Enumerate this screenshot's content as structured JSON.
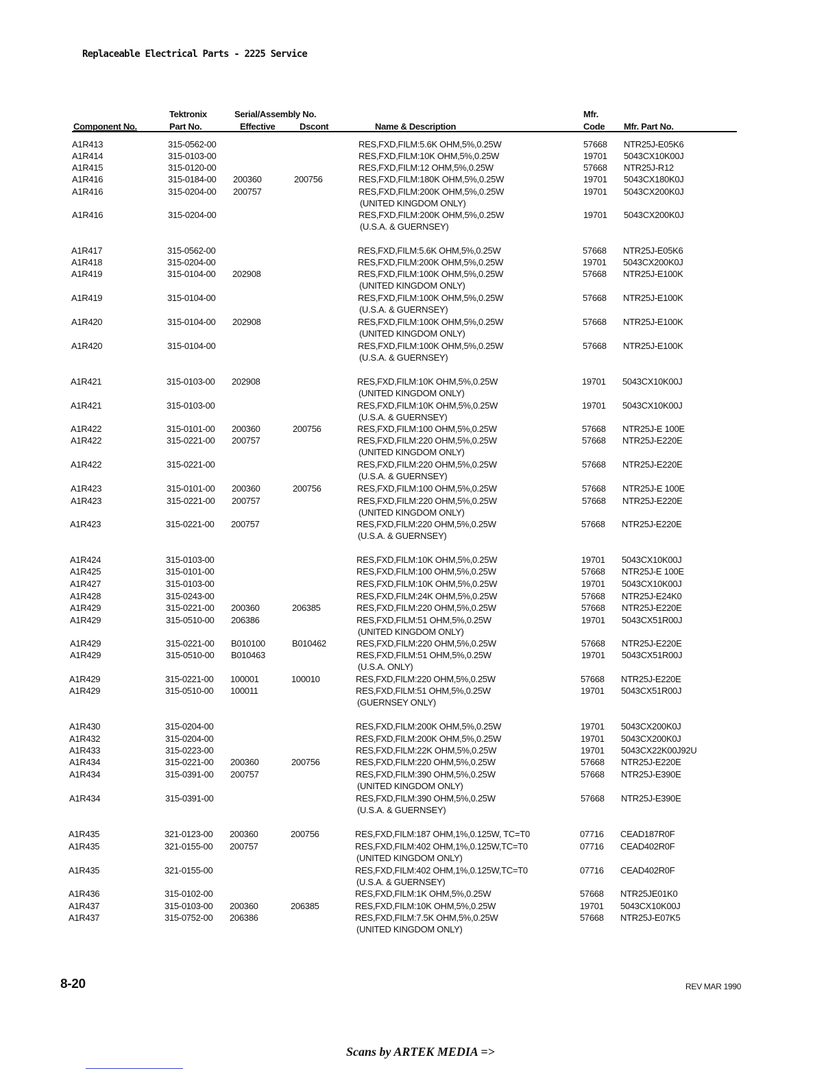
{
  "header": {
    "title": "Replaceable Electrical Parts - 2225 Service"
  },
  "columns": {
    "component": "Component No.",
    "tek_top": "Tektronix",
    "tek_part": "Part No.",
    "serial_top": "Serial/Assembly No.",
    "effective": "Effective",
    "dscont": "Dscont",
    "description": "Name & Description",
    "mfr_top": "Mfr.",
    "mfr_code": "Code",
    "mfr_part": "Mfr. Part No."
  },
  "rows": [
    [
      "A1R413",
      "315-0562-00",
      "",
      "",
      "RES,FXD,FILM:5.6K OHM,5%,0.25W",
      "",
      "57668",
      "NTR25J-E05K6"
    ],
    [
      "A1R414",
      "315-0103-00",
      "",
      "",
      "RES,FXD,FILM:10K OHM,5%,0.25W",
      "",
      "19701",
      "5043CX10K00J"
    ],
    [
      "A1R415",
      "315-0120-00",
      "",
      "",
      "RES,FXD,FILM:12 OHM,5%,0.25W",
      "",
      "57668",
      "NTR25J-R12"
    ],
    [
      "A1R416",
      "315-0184-00",
      "200360",
      "200756",
      "RES,FXD,FILM:180K OHM,5%,0.25W",
      "",
      "19701",
      "5043CX180K0J"
    ],
    [
      "A1R416",
      "315-0204-00",
      "200757",
      "",
      "RES,FXD,FILM:200K OHM,5%,0.25W",
      "(UNITED KINGDOM ONLY)",
      "19701",
      "5043CX200K0J"
    ],
    [
      "A1R416",
      "315-0204-00",
      "",
      "",
      "RES,FXD,FILM:200K OHM,5%,0.25W",
      "(U.S.A. & GUERNSEY)",
      "19701",
      "5043CX200K0J"
    ],
    [
      "A1R417",
      "315-0562-00",
      "",
      "",
      "RES,FXD,FILM:5.6K OHM,5%,0.25W",
      "",
      "57668",
      "NTR25J-E05K6"
    ],
    [
      "A1R418",
      "315-0204-00",
      "",
      "",
      "RES,FXD,FILM:200K OHM,5%,0.25W",
      "",
      "19701",
      "5043CX200K0J"
    ],
    [
      "A1R419",
      "315-0104-00",
      "202908",
      "",
      "RES,FXD,FILM:100K OHM,5%,0.25W",
      "(UNITED KINGDOM ONLY)",
      "57668",
      "NTR25J-E100K"
    ],
    [
      "A1R419",
      "315-0104-00",
      "",
      "",
      "RES,FXD,FILM:100K OHM,5%,0.25W",
      "(U.S.A. & GUERNSEY)",
      "57668",
      "NTR25J-E100K"
    ],
    [
      "A1R420",
      "315-0104-00",
      "202908",
      "",
      "RES,FXD,FILM:100K OHM,5%,0.25W",
      "(UNITED KINGDOM ONLY)",
      "57668",
      "NTR25J-E100K"
    ],
    [
      "A1R420",
      "315-0104-00",
      "",
      "",
      "RES,FXD,FILM:100K OHM,5%,0.25W",
      "(U.S.A. & GUERNSEY)",
      "57668",
      "NTR25J-E100K"
    ],
    [
      "A1R421",
      "315-0103-00",
      "202908",
      "",
      "RES,FXD,FILM:10K OHM,5%,0.25W",
      "(UNITED KINGDOM ONLY)",
      "19701",
      "5043CX10K00J"
    ],
    [
      "A1R421",
      "315-0103-00",
      "",
      "",
      "RES,FXD,FILM:10K OHM,5%,0.25W",
      "(U.S.A. & GUERNSEY)",
      "19701",
      "5043CX10K00J"
    ],
    [
      "A1R422",
      "315-0101-00",
      "200360",
      "200756",
      "RES,FXD,FILM:100 OHM,5%,0.25W",
      "",
      "57668",
      "NTR25J-E 100E"
    ],
    [
      "A1R422",
      "315-0221-00",
      "200757",
      "",
      "RES,FXD,FILM:220 OHM,5%,0.25W",
      "(UNITED KINGDOM ONLY)",
      "57668",
      "NTR25J-E220E"
    ],
    [
      "A1R422",
      "315-0221-00",
      "",
      "",
      "RES,FXD,FILM:220 OHM,5%,0.25W",
      "(U.S.A. & GUERNSEY)",
      "57668",
      "NTR25J-E220E"
    ],
    [
      "A1R423",
      "315-0101-00",
      "200360",
      "200756",
      "RES,FXD,FILM:100 OHM,5%,0.25W",
      "",
      "57668",
      "NTR25J-E 100E"
    ],
    [
      "A1R423",
      "315-0221-00",
      "200757",
      "",
      "RES,FXD,FILM:220 OHM,5%,0.25W",
      "(UNITED KINGDOM ONLY)",
      "57668",
      "NTR25J-E220E"
    ],
    [
      "A1R423",
      "315-0221-00",
      "200757",
      "",
      "RES,FXD,FILM:220 OHM,5%,0.25W",
      "(U.S.A. & GUERNSEY)",
      "57668",
      "NTR25J-E220E"
    ],
    [
      "A1R424",
      "315-0103-00",
      "",
      "",
      "RES,FXD,FILM:10K OHM,5%,0.25W",
      "",
      "19701",
      "5043CX10K00J"
    ],
    [
      "A1R425",
      "315-0101-00",
      "",
      "",
      "RES,FXD,FILM:100 OHM,5%,0.25W",
      "",
      "57668",
      "NTR25J-E 100E"
    ],
    [
      "A1R427",
      "315-0103-00",
      "",
      "",
      "RES,FXD,FILM:10K OHM,5%,0.25W",
      "",
      "19701",
      "5043CX10K00J"
    ],
    [
      "A1R428",
      "315-0243-00",
      "",
      "",
      "RES,FXD,FILM:24K OHM,5%,0.25W",
      "",
      "57668",
      "NTR25J-E24K0"
    ],
    [
      "A1R429",
      "315-0221-00",
      "200360",
      "206385",
      "RES,FXD,FILM:220 OHM,5%,0.25W",
      "",
      "57668",
      "NTR25J-E220E"
    ],
    [
      "A1R429",
      "315-0510-00",
      "206386",
      "",
      "RES,FXD,FILM:51 OHM,5%,0.25W",
      "(UNITED KINGDOM ONLY)",
      "19701",
      "5043CX51R00J"
    ],
    [
      "A1R429",
      "315-0221-00",
      "B010100",
      "B010462",
      "RES,FXD,FILM:220 OHM,5%,0.25W",
      "",
      "57668",
      "NTR25J-E220E"
    ],
    [
      "A1R429",
      "315-0510-00",
      "B010463",
      "",
      "RES,FXD,FILM:51 OHM,5%,0.25W",
      "(U.S.A. ONLY)",
      "19701",
      "5043CX51R00J"
    ],
    [
      "A1R429",
      "315-0221-00",
      "100001",
      "100010",
      "RES,FXD,FILM:220 OHM,5%,0.25W",
      "",
      "57668",
      "NTR25J-E220E"
    ],
    [
      "A1R429",
      "315-0510-00",
      "100011",
      "",
      "RES,FXD,FILM:51 OHM,5%,0.25W",
      "(GUERNSEY ONLY)",
      "19701",
      "5043CX51R00J"
    ],
    [
      "A1R430",
      "315-0204-00",
      "",
      "",
      "RES,FXD,FILM:200K OHM,5%,0.25W",
      "",
      "19701",
      "5043CX200K0J"
    ],
    [
      "A1R432",
      "315-0204-00",
      "",
      "",
      "RES,FXD,FILM:200K OHM,5%,0.25W",
      "",
      "19701",
      "5043CX200K0J"
    ],
    [
      "A1R433",
      "315-0223-00",
      "",
      "",
      "RES,FXD,FILM:22K OHM,5%,0.25W",
      "",
      "19701",
      "5043CX22K00J92U"
    ],
    [
      "A1R434",
      "315-0221-00",
      "200360",
      "200756",
      "RES,FXD,FILM:220 OHM,5%,0.25W",
      "",
      "57668",
      "NTR25J-E220E"
    ],
    [
      "A1R434",
      "315-0391-00",
      "200757",
      "",
      "RES,FXD,FILM:390 OHM,5%,0.25W",
      "(UNITED KINGDOM ONLY)",
      "57668",
      "NTR25J-E390E"
    ],
    [
      "A1R434",
      "315-0391-00",
      "",
      "",
      "RES,FXD,FILM:390 OHM,5%,0.25W",
      "(U.S.A. & GUERNSEY)",
      "57668",
      "NTR25J-E390E"
    ],
    [
      "A1R435",
      "321-0123-00",
      "200360",
      "200756",
      "RES,FXD,FILM:187 OHM,1%,0.125W, TC=T0",
      "",
      "07716",
      "CEAD187R0F"
    ],
    [
      "A1R435",
      "321-0155-00",
      "200757",
      "",
      "RES,FXD,FILM:402 OHM,1%,0.125W,TC=T0",
      "(UNITED KINGDOM ONLY)",
      "07716",
      "CEAD402R0F"
    ],
    [
      "A1R435",
      "321-0155-00",
      "",
      "",
      "RES,FXD,FILM:402 OHM,1%,0.125W,TC=T0",
      "(U.S.A. & GUERNSEY)",
      "07716",
      "CEAD402R0F"
    ],
    [
      "A1R436",
      "315-0102-00",
      "",
      "",
      "RES,FXD,FILM:1K OHM,5%,0.25W",
      "",
      "57668",
      "NTR25JE01K0"
    ],
    [
      "A1R437",
      "315-0103-00",
      "200360",
      "206385",
      "RES,FXD,FILM:10K OHM,5%,0.25W",
      "",
      "19701",
      "5043CX10K00J"
    ],
    [
      "A1R437",
      "315-0752-00",
      "206386",
      "",
      "RES,FXD,FILM:7.5K OHM,5%,0.25W",
      "(UNITED KINGDOM ONLY)",
      "57668",
      "NTR25J-E07K5"
    ]
  ],
  "footer": {
    "page_number": "8-20",
    "revision": "REV MAR 1990",
    "scans_credit": "Scans by ARTEK MEDIA =>"
  }
}
